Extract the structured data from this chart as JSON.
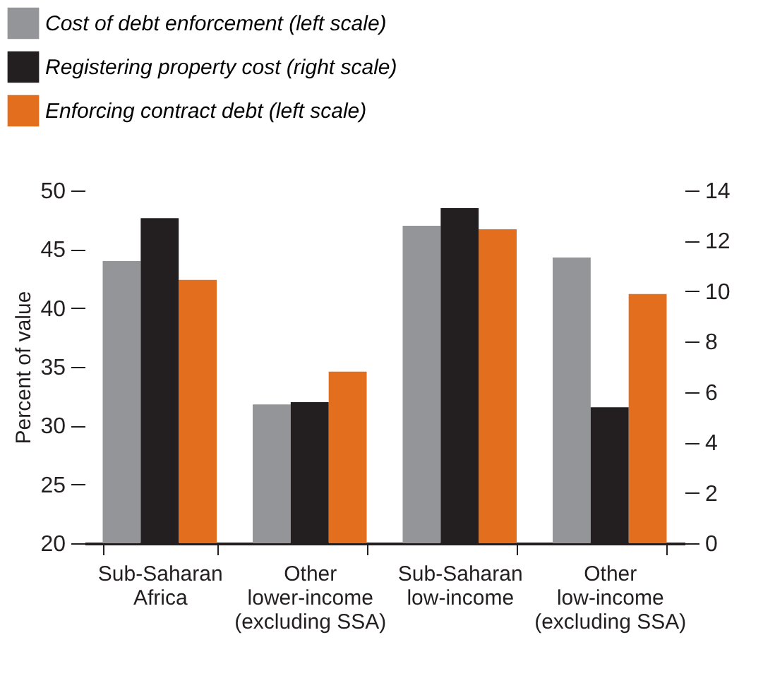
{
  "chart_data": {
    "type": "bar",
    "ylabel": "Percent of value",
    "categories": [
      "Sub-Saharan\nAfrica",
      "Other\nlower-income\n(excluding SSA)",
      "Sub-Saharan\nlow-income",
      "Other\nlow-income\n(excluding SSA)"
    ],
    "series": [
      {
        "name": "Cost of debt enforcement (left scale)",
        "color": "#939598",
        "values": [
          44.0,
          31.8,
          47.0,
          44.3
        ]
      },
      {
        "name": "Registering property cost (right scale)",
        "color": "#231f20",
        "values": [
          12.9,
          5.6,
          13.3,
          5.4
        ],
        "axis": "y2"
      },
      {
        "name": "Enforcing contract debt (left scale)",
        "color": "#e36f1e",
        "values": [
          42.4,
          34.6,
          46.7,
          41.2
        ]
      }
    ],
    "ylim": [
      20,
      50
    ],
    "yticks": [
      20,
      25,
      30,
      35,
      40,
      45,
      50
    ],
    "y2lim": [
      0,
      14
    ],
    "y2ticks": [
      0,
      2,
      4,
      6,
      8,
      10,
      12,
      14
    ],
    "grid": false,
    "legend": "top left"
  }
}
